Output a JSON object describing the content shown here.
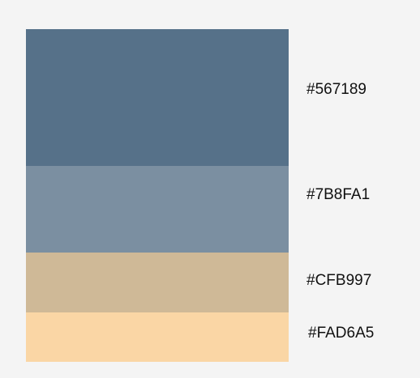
{
  "palette": {
    "swatches": [
      {
        "hex": "#567189",
        "label": "#567189"
      },
      {
        "hex": "#7B8FA1",
        "label": "#7B8FA1"
      },
      {
        "hex": "#CFB997",
        "label": "#CFB997"
      },
      {
        "hex": "#FAD6A5",
        "label": "#FAD6A5"
      }
    ]
  }
}
